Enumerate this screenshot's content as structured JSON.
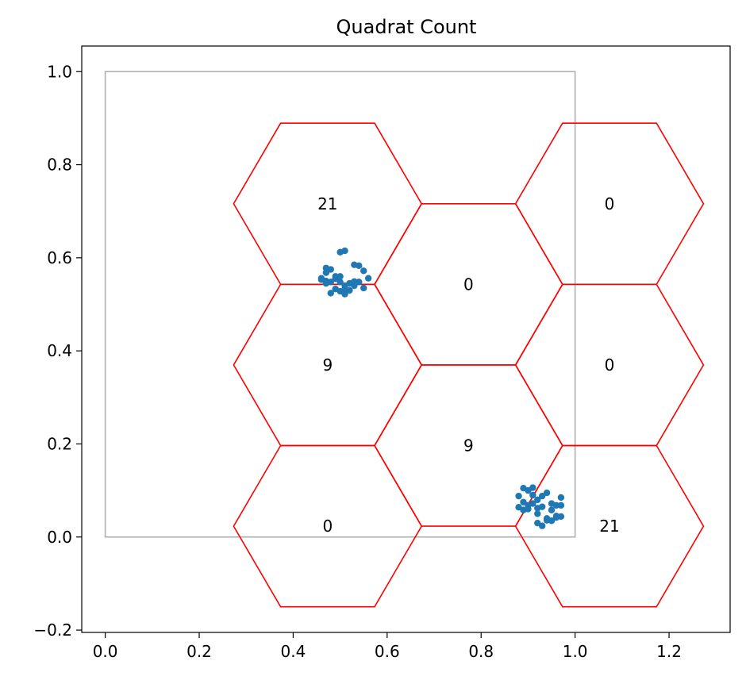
{
  "chart_data": {
    "type": "scatter",
    "title": "Quadrat Count",
    "xlabel": "",
    "ylabel": "",
    "xlim": [
      -0.05,
      1.33
    ],
    "ylim": [
      -0.205,
      1.055
    ],
    "xticks": [
      0.0,
      0.2,
      0.4,
      0.6,
      0.8,
      1.0,
      1.2
    ],
    "xtick_labels": [
      "0.0",
      "0.2",
      "0.4",
      "0.6",
      "0.8",
      "1.0",
      "1.2"
    ],
    "yticks": [
      -0.2,
      0.0,
      0.2,
      0.4,
      0.6,
      0.8,
      1.0
    ],
    "ytick_labels": [
      "−0.2",
      "0.0",
      "0.2",
      "0.4",
      "0.6",
      "0.8",
      "1.0"
    ],
    "grid": false,
    "legend": "none",
    "study_area": {
      "x": [
        0.0,
        1.0
      ],
      "y": [
        0.0,
        1.0
      ],
      "color": "#b0b0b0"
    },
    "hexagons": {
      "color": "#ff0000",
      "radius": 0.2,
      "cells": [
        {
          "cx": 0.4733,
          "cy": 0.7161,
          "count": "21"
        },
        {
          "cx": 0.4733,
          "cy": 0.3697,
          "count": "9"
        },
        {
          "cx": 0.4733,
          "cy": 0.0233,
          "count": "0"
        },
        {
          "cx": 0.7733,
          "cy": 0.5429,
          "count": "0"
        },
        {
          "cx": 0.7733,
          "cy": 0.1965,
          "count": "9"
        },
        {
          "cx": 1.0733,
          "cy": 0.7161,
          "count": "0"
        },
        {
          "cx": 1.0733,
          "cy": 0.3697,
          "count": "0"
        },
        {
          "cx": 1.0733,
          "cy": 0.0233,
          "count": "21"
        }
      ]
    },
    "points": {
      "color": "#1f77b4",
      "x": [
        0.5,
        0.51,
        0.47,
        0.48,
        0.46,
        0.53,
        0.54,
        0.55,
        0.56,
        0.49,
        0.5,
        0.51,
        0.52,
        0.47,
        0.48,
        0.53,
        0.54,
        0.49,
        0.5,
        0.51,
        0.47,
        0.52,
        0.48,
        0.55,
        0.46,
        0.5,
        0.53,
        0.47,
        0.51,
        0.49,
        0.89,
        0.9,
        0.91,
        0.92,
        0.93,
        0.94,
        0.95,
        0.96,
        0.97,
        0.88,
        0.89,
        0.9,
        0.91,
        0.92,
        0.93,
        0.94,
        0.95,
        0.96,
        0.97,
        0.88,
        0.9,
        0.92,
        0.94,
        0.96,
        0.89,
        0.91,
        0.93,
        0.95,
        0.97,
        0.92
      ],
      "y": [
        0.612,
        0.615,
        0.578,
        0.575,
        0.556,
        0.585,
        0.583,
        0.572,
        0.556,
        0.555,
        0.548,
        0.54,
        0.545,
        0.55,
        0.548,
        0.54,
        0.548,
        0.533,
        0.528,
        0.522,
        0.545,
        0.53,
        0.524,
        0.535,
        0.553,
        0.56,
        0.549,
        0.568,
        0.533,
        0.56,
        0.105,
        0.1,
        0.106,
        0.08,
        0.088,
        0.095,
        0.072,
        0.068,
        0.085,
        0.088,
        0.075,
        0.06,
        0.09,
        0.062,
        0.065,
        0.04,
        0.058,
        0.045,
        0.068,
        0.064,
        0.068,
        0.05,
        0.036,
        0.042,
        0.058,
        0.072,
        0.024,
        0.035,
        0.044,
        0.03
      ]
    }
  }
}
